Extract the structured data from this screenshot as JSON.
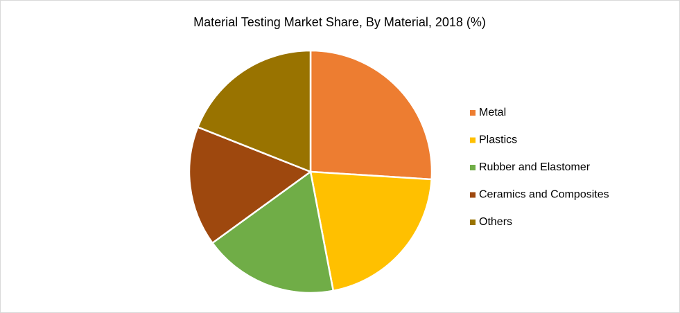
{
  "chart_data": {
    "type": "pie",
    "title": "Material Testing Market Share, By Material, 2018 (%)",
    "categories": [
      "Metal",
      "Plastics",
      "Rubber and Elastomer",
      "Ceramics and Composites",
      "Others"
    ],
    "values": [
      26,
      21,
      18,
      16,
      19
    ],
    "colors": [
      "#ED7D31",
      "#FFC000",
      "#70AD47",
      "#9E480E",
      "#997300"
    ],
    "legend": "right"
  }
}
